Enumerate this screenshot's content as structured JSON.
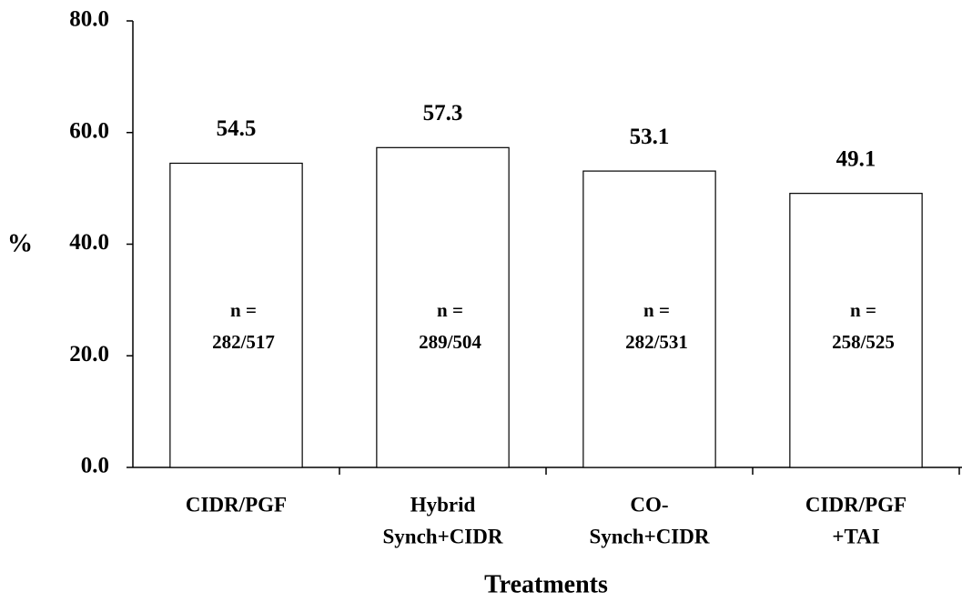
{
  "chart_data": {
    "type": "bar",
    "categories": [
      [
        "CIDR/PGF"
      ],
      [
        "Hybrid",
        "Synch+CIDR"
      ],
      [
        "CO-",
        "Synch+CIDR"
      ],
      [
        "CIDR/PGF",
        "+TAI"
      ]
    ],
    "values": [
      54.5,
      57.3,
      53.1,
      49.1
    ],
    "value_labels": [
      "54.5",
      "57.3",
      "53.1",
      "49.1"
    ],
    "annotations": [
      [
        "n =",
        "282/517"
      ],
      [
        "n =",
        "289/504"
      ],
      [
        "n =",
        "282/531"
      ],
      [
        "n =",
        "258/525"
      ]
    ],
    "color": "#ffffff",
    "ylim": [
      0,
      80
    ],
    "yticks": [
      {
        "value": 0,
        "label": "0.0"
      },
      {
        "value": 20,
        "label": "20.0"
      },
      {
        "value": 40,
        "label": "40.0"
      },
      {
        "value": 60,
        "label": "60.0"
      },
      {
        "value": 80,
        "label": "80.0"
      }
    ],
    "y_label": "%",
    "x_label": "Treatments"
  }
}
